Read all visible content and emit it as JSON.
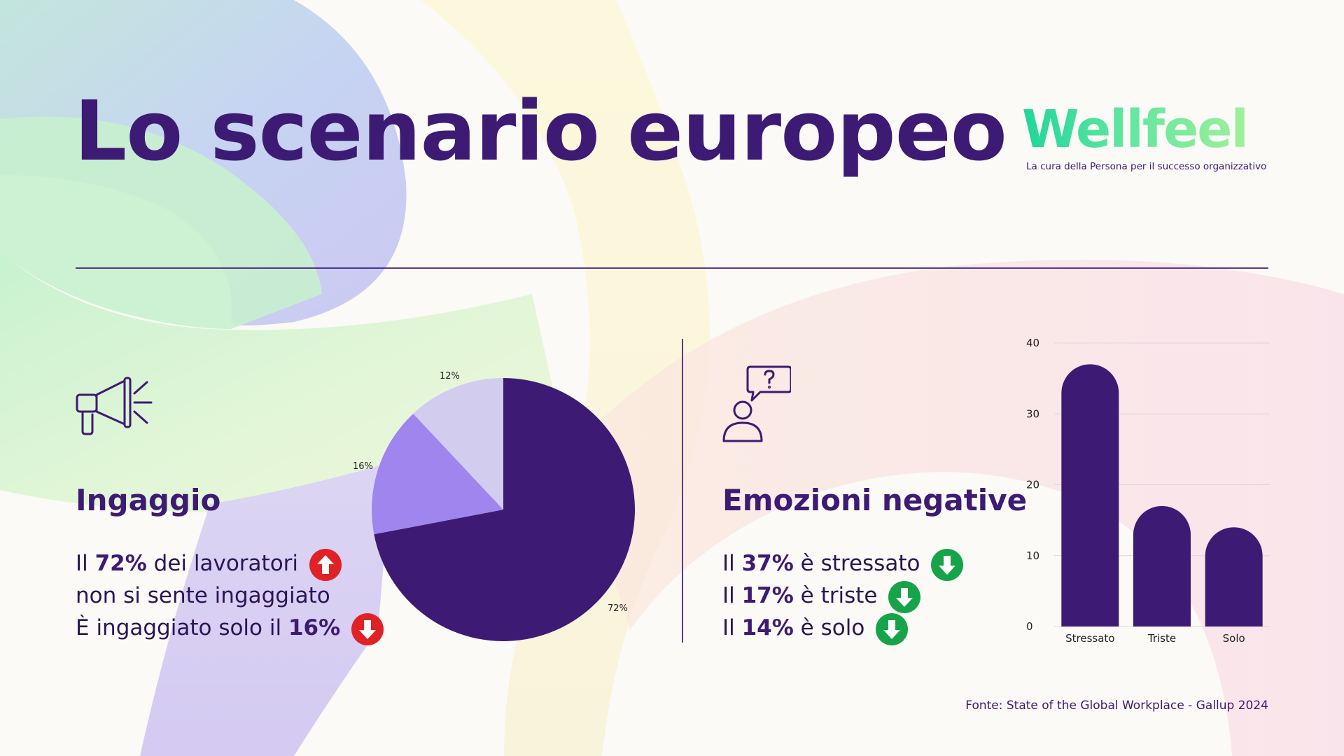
{
  "title": "Lo scenario europeo",
  "logo": {
    "wordmark": "Wellfeel",
    "tagline": "La cura della Persona per il successo organizzativo"
  },
  "engagement": {
    "icon": "megaphone-icon",
    "heading": "Ingaggio",
    "line1_prefix": "Il ",
    "line1_value": "72%",
    "line1_suffix": " dei lavoratori",
    "line1_trend": "up",
    "line2": "non si sente ingaggiato",
    "line3_prefix": "È ingaggiato solo il ",
    "line3_value": "16%",
    "line3_trend": "down"
  },
  "negative_emotions": {
    "icon": "person-question-icon",
    "heading": "Emozioni negative",
    "items": [
      {
        "prefix": "Il ",
        "value": "37%",
        "suffix": " è stressato",
        "trend": "down"
      },
      {
        "prefix": "Il ",
        "value": "17%",
        "suffix": " è triste",
        "trend": "down"
      },
      {
        "prefix": "Il ",
        "value": "14%",
        "suffix": " è solo",
        "trend": "down"
      }
    ]
  },
  "colors": {
    "primary": "#3d1a73",
    "pie_light": "#d2cdee",
    "pie_mid": "#9f85ee",
    "arrow_up": "#e02226",
    "arrow_down_red": "#e02226",
    "arrow_down_green": "#16a34a"
  },
  "chart_data": [
    {
      "type": "pie",
      "slices": [
        {
          "label": "72%",
          "value": 72,
          "color": "#3d1a73"
        },
        {
          "label": "16%",
          "value": 16,
          "color": "#9f85ee"
        },
        {
          "label": "12%",
          "value": 12,
          "color": "#d2cdee"
        }
      ]
    },
    {
      "type": "bar",
      "categories": [
        "Stressato",
        "Triste",
        "Solo"
      ],
      "values": [
        37,
        17,
        14
      ],
      "ylim": [
        0,
        40
      ],
      "yticks": [
        0,
        10,
        20,
        30,
        40
      ],
      "grid": true,
      "color": "#3d1a73"
    }
  ],
  "source": "Fonte: State of the Global Workplace - Gallup 2024"
}
